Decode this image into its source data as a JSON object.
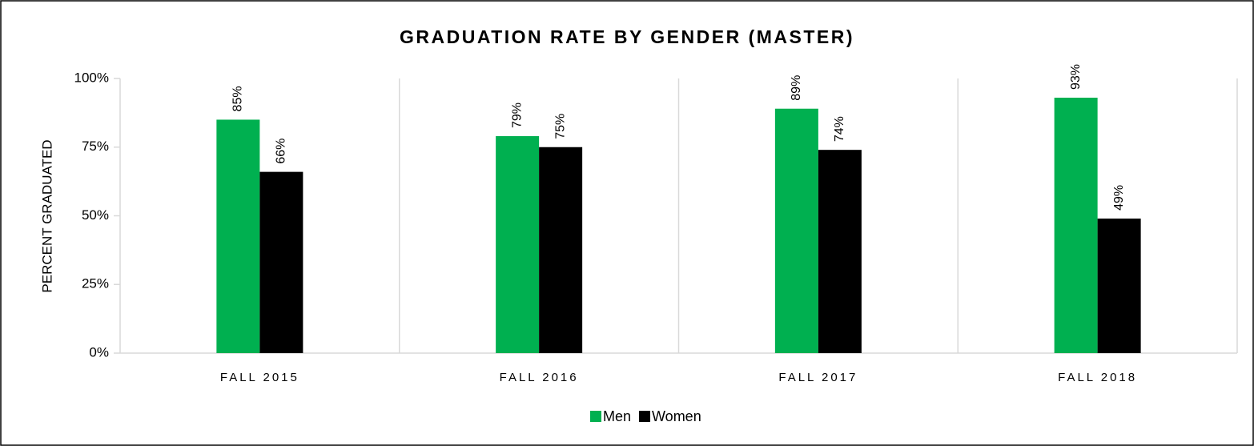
{
  "chart_data": {
    "type": "bar",
    "title": "GRADUATION RATE BY GENDER (MASTER)",
    "y_label": "PERCENT GRADUATED",
    "categories": [
      "FALL 2015",
      "FALL 2016",
      "FALL 2017",
      "FALL 2018"
    ],
    "series": [
      {
        "name": "Men",
        "color": "#00b050",
        "values": [
          85,
          79,
          89,
          93
        ],
        "value_labels": [
          "85%",
          "79%",
          "89%",
          "93%"
        ]
      },
      {
        "name": "Women",
        "color": "#000000",
        "values": [
          66,
          75,
          74,
          49
        ],
        "value_labels": [
          "66%",
          "75%",
          "74%",
          "49%"
        ]
      }
    ],
    "ylim": [
      0,
      100
    ],
    "yticks": [
      {
        "value": 0,
        "label": "0%"
      },
      {
        "value": 25,
        "label": "25%"
      },
      {
        "value": 50,
        "label": "50%"
      },
      {
        "value": 75,
        "label": "75%"
      },
      {
        "value": 100,
        "label": "100%"
      }
    ],
    "legend": "bottom"
  }
}
